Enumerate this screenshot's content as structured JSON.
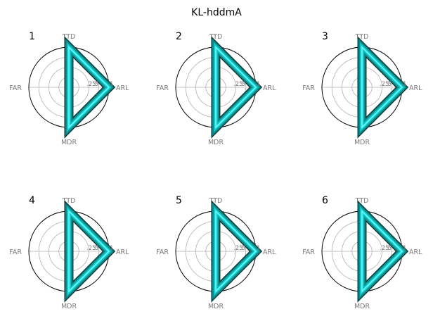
{
  "figure": {
    "title": "KL-hddmA"
  },
  "colors": {
    "outline": "#000000",
    "grid": "#b0b0b0",
    "label": "#7a7a7a",
    "band_dark": "#0b3d3d",
    "band_mid": "#0f8a8a",
    "band_bright": "#19e6e6"
  },
  "chart_data": [
    {
      "type": "radar",
      "title": "1",
      "axes": [
        "TTD",
        "ARL",
        "MDR",
        "FAR"
      ],
      "ticks": [
        ".25",
        ".5",
        "1"
      ],
      "rmax": 1,
      "values": [
        1,
        1,
        1,
        0
      ],
      "grid": true
    },
    {
      "type": "radar",
      "title": "2",
      "axes": [
        "TTD",
        "ARL",
        "MDR",
        "FAR"
      ],
      "ticks": [
        ".25",
        ".5",
        "1"
      ],
      "rmax": 1,
      "values": [
        1,
        1,
        1,
        0
      ],
      "grid": true
    },
    {
      "type": "radar",
      "title": "3",
      "axes": [
        "TTD",
        "ARL",
        "MDR",
        "FAR"
      ],
      "ticks": [
        ".25",
        ".5",
        "1"
      ],
      "rmax": 1,
      "values": [
        1,
        1,
        1,
        0
      ],
      "grid": true
    },
    {
      "type": "radar",
      "title": "4",
      "axes": [
        "TTD",
        "ARL",
        "MDR",
        "FAR"
      ],
      "ticks": [
        ".25",
        ".5",
        "1"
      ],
      "rmax": 1,
      "values": [
        1,
        1,
        1,
        0
      ],
      "grid": true
    },
    {
      "type": "radar",
      "title": "5",
      "axes": [
        "TTD",
        "ARL",
        "MDR",
        "FAR"
      ],
      "ticks": [
        ".25",
        ".5",
        "1"
      ],
      "rmax": 1,
      "values": [
        1,
        1,
        1,
        0
      ],
      "grid": true
    },
    {
      "type": "radar",
      "title": "6",
      "axes": [
        "TTD",
        "ARL",
        "MDR",
        "FAR"
      ],
      "ticks": [
        ".25",
        ".5",
        "1"
      ],
      "rmax": 1,
      "values": [
        1,
        1,
        1,
        0
      ],
      "grid": true
    }
  ]
}
